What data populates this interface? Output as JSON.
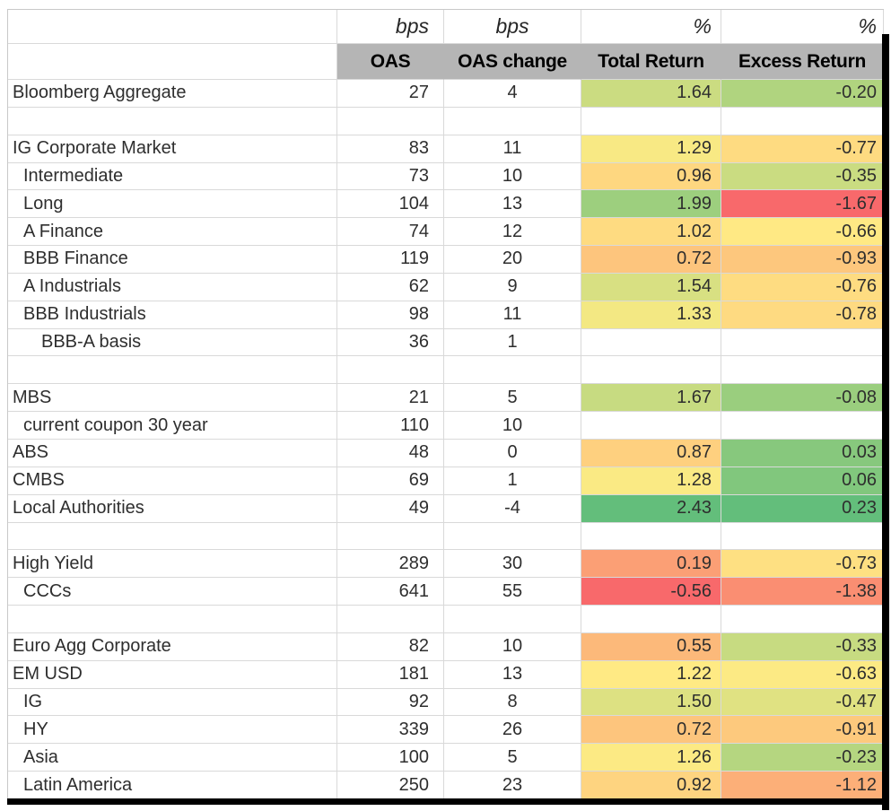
{
  "chart_data": {
    "type": "table",
    "title": "",
    "unit_row": {
      "label": "",
      "oas": "bps",
      "oas_change": "bps",
      "total_return": "%",
      "excess_return": "%"
    },
    "header": {
      "label": "",
      "oas": "OAS",
      "oas_change": "OAS change",
      "total_return": "Total Return",
      "excess_return": "Excess Return"
    },
    "columns": [
      "OAS",
      "OAS change",
      "Total Return",
      "Excess Return"
    ],
    "colors": {
      "header_bg": "#B5B5B5",
      "scale_min_red": "#F8696B",
      "scale_mid_yellow": "#FFEB84",
      "scale_max_green": "#63BE7B",
      "gridline": "#D9D9D9",
      "border_bar": "#000000"
    },
    "rows": [
      {
        "label": "Bloomberg Aggregate",
        "indent": 0,
        "oas": "27",
        "oas_change": "4",
        "total_return": "1.64",
        "excess_return": "-0.20",
        "tr_bg": "#CBDC81",
        "er_bg": "#B0D47F"
      },
      {
        "label": "",
        "indent": 0,
        "oas": "",
        "oas_change": "",
        "total_return": "",
        "excess_return": "",
        "tr_bg": "",
        "er_bg": ""
      },
      {
        "label": "IG Corporate Market",
        "indent": 0,
        "oas": "83",
        "oas_change": "11",
        "total_return": "1.29",
        "excess_return": "-0.77",
        "tr_bg": "#F8E984",
        "er_bg": "#FEDB81"
      },
      {
        "label": "Intermediate",
        "indent": 1,
        "oas": "73",
        "oas_change": "10",
        "total_return": "0.96",
        "excess_return": "-0.35",
        "tr_bg": "#FED780",
        "er_bg": "#CADC81"
      },
      {
        "label": "Long",
        "indent": 1,
        "oas": "104",
        "oas_change": "13",
        "total_return": "1.99",
        "excess_return": "-1.67",
        "tr_bg": "#9DCF7E",
        "er_bg": "#F8696B"
      },
      {
        "label": "A Finance",
        "indent": 1,
        "oas": "74",
        "oas_change": "12",
        "total_return": "1.02",
        "excess_return": "-0.66",
        "tr_bg": "#FEDB81",
        "er_bg": "#FFE984"
      },
      {
        "label": "BBB Finance",
        "indent": 1,
        "oas": "119",
        "oas_change": "20",
        "total_return": "0.72",
        "excess_return": "-0.93",
        "tr_bg": "#FDC57D",
        "er_bg": "#FDC77D"
      },
      {
        "label": "A Industrials",
        "indent": 1,
        "oas": "62",
        "oas_change": "9",
        "total_return": "1.54",
        "excess_return": "-0.76",
        "tr_bg": "#D8E082",
        "er_bg": "#FEDC81"
      },
      {
        "label": "BBB Industrials",
        "indent": 1,
        "oas": "98",
        "oas_change": "11",
        "total_return": "1.33",
        "excess_return": "-0.78",
        "tr_bg": "#F3E883",
        "er_bg": "#FEDA81"
      },
      {
        "label": "BBB-A basis",
        "indent": 2,
        "oas": "36",
        "oas_change": "1",
        "total_return": "",
        "excess_return": "",
        "tr_bg": "",
        "er_bg": ""
      },
      {
        "label": "",
        "indent": 0,
        "oas": "",
        "oas_change": "",
        "total_return": "",
        "excess_return": "",
        "tr_bg": "",
        "er_bg": ""
      },
      {
        "label": "MBS",
        "indent": 0,
        "oas": "21",
        "oas_change": "5",
        "total_return": "1.67",
        "excess_return": "-0.08",
        "tr_bg": "#C7DB81",
        "er_bg": "#9ACE7E"
      },
      {
        "label": "current coupon 30 year",
        "indent": 1,
        "oas": "110",
        "oas_change": "10",
        "total_return": "",
        "excess_return": "",
        "tr_bg": "",
        "er_bg": ""
      },
      {
        "label": "ABS",
        "indent": 0,
        "oas": "48",
        "oas_change": "0",
        "total_return": "0.87",
        "excess_return": "0.03",
        "tr_bg": "#FED07F",
        "er_bg": "#87C87D"
      },
      {
        "label": "CMBS",
        "indent": 0,
        "oas": "69",
        "oas_change": "1",
        "total_return": "1.28",
        "excess_return": "0.06",
        "tr_bg": "#FAEA84",
        "er_bg": "#81C77D"
      },
      {
        "label": "Local Authorities",
        "indent": 0,
        "oas": "49",
        "oas_change": "-4",
        "total_return": "2.43",
        "excess_return": "0.23",
        "tr_bg": "#63BE7B",
        "er_bg": "#63BE7B"
      },
      {
        "label": "",
        "indent": 0,
        "oas": "",
        "oas_change": "",
        "total_return": "",
        "excess_return": "",
        "tr_bg": "",
        "er_bg": ""
      },
      {
        "label": "High Yield",
        "indent": 0,
        "oas": "289",
        "oas_change": "30",
        "total_return": "0.19",
        "excess_return": "-0.73",
        "tr_bg": "#FB9F75",
        "er_bg": "#FEE082"
      },
      {
        "label": "CCCs",
        "indent": 1,
        "oas": "641",
        "oas_change": "55",
        "total_return": "-0.56",
        "excess_return": "-1.38",
        "tr_bg": "#F8696B",
        "er_bg": "#FA8E72"
      },
      {
        "label": "",
        "indent": 0,
        "oas": "",
        "oas_change": "",
        "total_return": "",
        "excess_return": "",
        "tr_bg": "",
        "er_bg": ""
      },
      {
        "label": "Euro Agg Corporate",
        "indent": 0,
        "oas": "82",
        "oas_change": "10",
        "total_return": "0.55",
        "excess_return": "-0.33",
        "tr_bg": "#FCB97A",
        "er_bg": "#C7DB81"
      },
      {
        "label": "EM USD",
        "indent": 0,
        "oas": "181",
        "oas_change": "13",
        "total_return": "1.22",
        "excess_return": "-0.63",
        "tr_bg": "#FFEA84",
        "er_bg": "#FCEA84"
      },
      {
        "label": "IG",
        "indent": 1,
        "oas": "92",
        "oas_change": "8",
        "total_return": "1.50",
        "excess_return": "-0.47",
        "tr_bg": "#DDE182",
        "er_bg": "#E0E282"
      },
      {
        "label": "HY",
        "indent": 1,
        "oas": "339",
        "oas_change": "26",
        "total_return": "0.72",
        "excess_return": "-0.91",
        "tr_bg": "#FDC57D",
        "er_bg": "#FDC97D"
      },
      {
        "label": "Asia",
        "indent": 1,
        "oas": "100",
        "oas_change": "5",
        "total_return": "1.26",
        "excess_return": "-0.23",
        "tr_bg": "#FCEA84",
        "er_bg": "#B5D680"
      },
      {
        "label": "Latin America",
        "indent": 1,
        "oas": "250",
        "oas_change": "23",
        "total_return": "0.92",
        "excess_return": "-1.12",
        "tr_bg": "#FED480",
        "er_bg": "#FCAF78"
      }
    ]
  }
}
